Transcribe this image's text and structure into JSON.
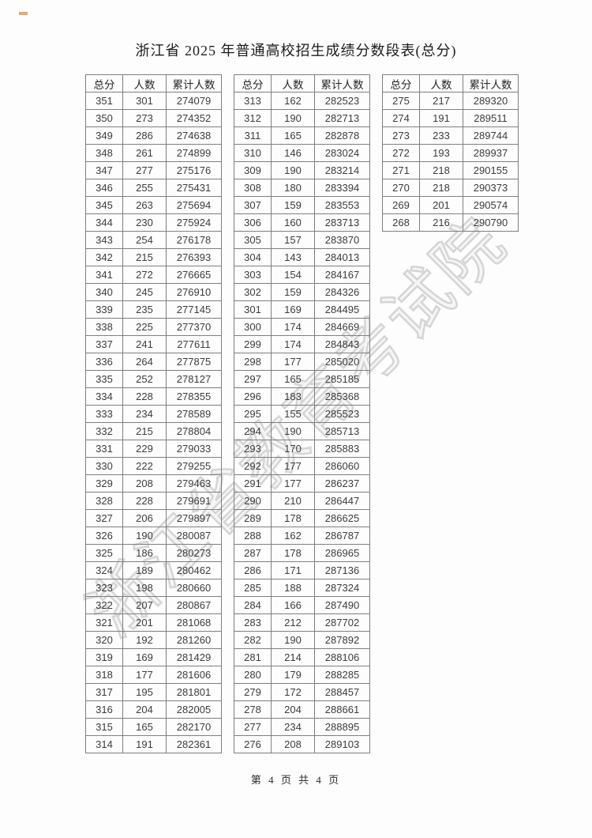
{
  "page": {
    "title": "浙江省 2025 年普通高校招生成绩分数段表(总分)",
    "footer": "第 4 页 共 4 页",
    "watermark": "浙江省教育考试院"
  },
  "table": {
    "headers": [
      "总分",
      "人数",
      "累计人数"
    ],
    "cell_names": [
      "cell-score",
      "cell-count",
      "cell-cumulative"
    ],
    "groups": [
      {
        "rows": [
          [
            351,
            301,
            274079
          ],
          [
            350,
            273,
            274352
          ],
          [
            349,
            286,
            274638
          ],
          [
            348,
            261,
            274899
          ],
          [
            347,
            277,
            275176
          ],
          [
            346,
            255,
            275431
          ],
          [
            345,
            263,
            275694
          ],
          [
            344,
            230,
            275924
          ],
          [
            343,
            254,
            276178
          ],
          [
            342,
            215,
            276393
          ],
          [
            341,
            272,
            276665
          ],
          [
            340,
            245,
            276910
          ],
          [
            339,
            235,
            277145
          ],
          [
            338,
            225,
            277370
          ],
          [
            337,
            241,
            277611
          ],
          [
            336,
            264,
            277875
          ],
          [
            335,
            252,
            278127
          ],
          [
            334,
            228,
            278355
          ],
          [
            333,
            234,
            278589
          ],
          [
            332,
            215,
            278804
          ],
          [
            331,
            229,
            279033
          ],
          [
            330,
            222,
            279255
          ],
          [
            329,
            208,
            279463
          ],
          [
            328,
            228,
            279691
          ],
          [
            327,
            206,
            279897
          ],
          [
            326,
            190,
            280087
          ],
          [
            325,
            186,
            280273
          ],
          [
            324,
            189,
            280462
          ],
          [
            323,
            198,
            280660
          ],
          [
            322,
            207,
            280867
          ],
          [
            321,
            201,
            281068
          ],
          [
            320,
            192,
            281260
          ],
          [
            319,
            169,
            281429
          ],
          [
            318,
            177,
            281606
          ],
          [
            317,
            195,
            281801
          ],
          [
            316,
            204,
            282005
          ],
          [
            315,
            165,
            282170
          ],
          [
            314,
            191,
            282361
          ]
        ]
      },
      {
        "rows": [
          [
            313,
            162,
            282523
          ],
          [
            312,
            190,
            282713
          ],
          [
            311,
            165,
            282878
          ],
          [
            310,
            146,
            283024
          ],
          [
            309,
            190,
            283214
          ],
          [
            308,
            180,
            283394
          ],
          [
            307,
            159,
            283553
          ],
          [
            306,
            160,
            283713
          ],
          [
            305,
            157,
            283870
          ],
          [
            304,
            143,
            284013
          ],
          [
            303,
            154,
            284167
          ],
          [
            302,
            159,
            284326
          ],
          [
            301,
            169,
            284495
          ],
          [
            300,
            174,
            284669
          ],
          [
            299,
            174,
            284843
          ],
          [
            298,
            177,
            285020
          ],
          [
            297,
            165,
            285185
          ],
          [
            296,
            183,
            285368
          ],
          [
            295,
            155,
            285523
          ],
          [
            294,
            190,
            285713
          ],
          [
            293,
            170,
            285883
          ],
          [
            292,
            177,
            286060
          ],
          [
            291,
            177,
            286237
          ],
          [
            290,
            210,
            286447
          ],
          [
            289,
            178,
            286625
          ],
          [
            288,
            162,
            286787
          ],
          [
            287,
            178,
            286965
          ],
          [
            286,
            171,
            287136
          ],
          [
            285,
            188,
            287324
          ],
          [
            284,
            166,
            287490
          ],
          [
            283,
            212,
            287702
          ],
          [
            282,
            190,
            287892
          ],
          [
            281,
            214,
            288106
          ],
          [
            280,
            179,
            288285
          ],
          [
            279,
            172,
            288457
          ],
          [
            278,
            204,
            288661
          ],
          [
            277,
            234,
            288895
          ],
          [
            276,
            208,
            289103
          ]
        ]
      },
      {
        "rows": [
          [
            275,
            217,
            289320
          ],
          [
            274,
            191,
            289511
          ],
          [
            273,
            233,
            289744
          ],
          [
            272,
            193,
            289937
          ],
          [
            271,
            218,
            290155
          ],
          [
            270,
            218,
            290373
          ],
          [
            269,
            201,
            290574
          ],
          [
            268,
            216,
            290790
          ]
        ]
      }
    ]
  }
}
